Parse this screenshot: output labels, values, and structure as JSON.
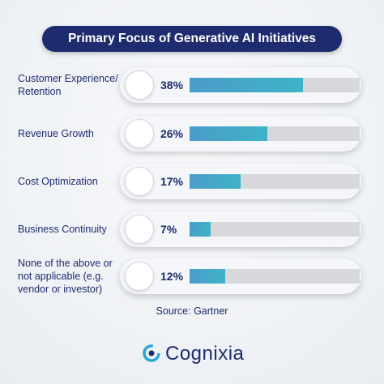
{
  "chart_data": {
    "type": "bar",
    "orientation": "horizontal",
    "title": "Primary Focus of Generative AI Initiatives",
    "categories": [
      "Customer Experience/ Retention",
      "Revenue Growth",
      "Cost Optimization",
      "Business Continuity",
      "None of the above or not applicable (e.g. vendor or investor)"
    ],
    "values": [
      38,
      26,
      17,
      7,
      12
    ],
    "value_labels": [
      "38%",
      "26%",
      "17%",
      "7%",
      "12%"
    ],
    "color": "#3fb2c8",
    "source": "Source: Gartner",
    "brand": "Cognixia"
  }
}
